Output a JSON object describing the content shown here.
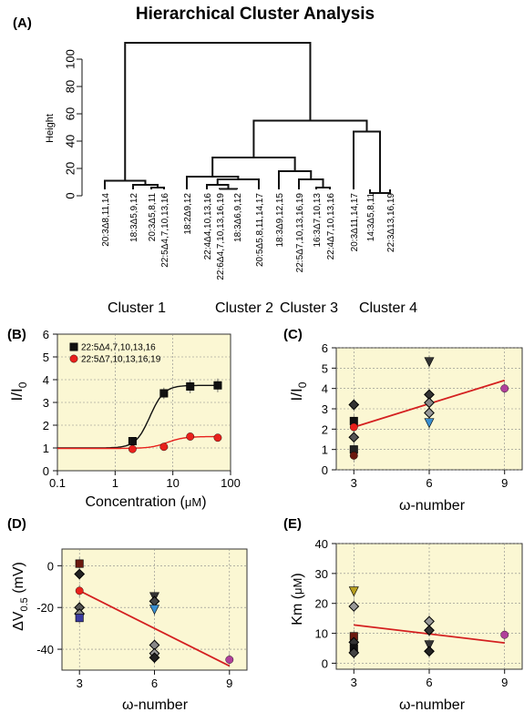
{
  "chart_data": [
    {
      "panel": "(A)",
      "type": "dendrogram",
      "title": "Hierarchical Cluster Analysis",
      "ylabel": "Height",
      "ylim": [
        0,
        100
      ],
      "yticks": [
        0,
        20,
        40,
        60,
        80,
        100
      ],
      "leaves": [
        "20:3Δ8,11,14",
        "18:3Δ5,9,12",
        "20:3Δ5,8,11",
        "22:5Δ4,7,10,13,16",
        "18:2Δ9,12",
        "22:4Δ4,10,13,16",
        "22:6Δ4,7,10,13,16,19",
        "18:3Δ6,9,12",
        "20:5Δ5,8,11,14,17",
        "18:3Δ9,12,15",
        "22:5Δ7,10,13,16,19",
        "16:3Δ7,10,13",
        "22:4Δ7,10,13,16",
        "20:3Δ11,14,17",
        "14:3Δ5,8,11",
        "22:3Δ13,16,19"
      ],
      "merges": [
        {
          "left": 2,
          "right": 3,
          "height": 6
        },
        {
          "left": 1,
          "right": "m0",
          "height": 8
        },
        {
          "left": 0,
          "right": "m1",
          "height": 11
        },
        {
          "left": 6,
          "right": 7,
          "height": 5
        },
        {
          "left": 5,
          "right": "m3",
          "height": 8
        },
        {
          "left": "m4",
          "right": 8,
          "height": 12
        },
        {
          "left": 4,
          "right": "m5",
          "height": 14
        },
        {
          "left": 11,
          "right": 12,
          "height": 6
        },
        {
          "left": 10,
          "right": "m7",
          "height": 12
        },
        {
          "left": 9,
          "right": "m8",
          "height": 18
        },
        {
          "left": 14,
          "right": 15,
          "height": 2
        },
        {
          "left": 13,
          "right": "m10",
          "height": 47
        },
        {
          "left": "m6",
          "right": "m9",
          "height": 28
        },
        {
          "left": "m12",
          "right": "m11",
          "height": 55
        },
        {
          "left": "m2",
          "right": "m13",
          "height": 112
        }
      ],
      "clusters": [
        "Cluster 1",
        "Cluster 2",
        "Cluster 3",
        "Cluster 4"
      ]
    },
    {
      "panel": "(B)",
      "type": "line",
      "xlabel_main": "Concentration (",
      "xlabel_unit": "μM",
      "xlabel_end": ")",
      "ylabel_main": "I/I",
      "ylabel_sub": "0",
      "xscale": "log",
      "xlim": [
        0.1,
        100
      ],
      "xticks": [
        "0.1",
        "1",
        "10",
        "100"
      ],
      "ylim": [
        0,
        6
      ],
      "yticks": [
        "0",
        "1",
        "2",
        "3",
        "4",
        "5",
        "6"
      ],
      "legend": "top-left",
      "series": [
        {
          "name": "22:5Δ4,7,10,13,16",
          "color": "#111111",
          "marker": "square",
          "x": [
            2,
            7,
            20,
            60
          ],
          "y": [
            1.3,
            3.4,
            3.7,
            3.75
          ],
          "err": [
            0.1,
            0.25,
            0.3,
            0.3
          ],
          "fit": {
            "bottom": 1.0,
            "top": 3.75,
            "ec50": 4.0,
            "hill": 3.5
          }
        },
        {
          "name": "22:5Δ7,10,13,16,19",
          "color": "#e8211c",
          "marker": "circle",
          "x": [
            2,
            7,
            20,
            60
          ],
          "y": [
            0.95,
            1.05,
            1.5,
            1.45
          ],
          "err": [
            0.05,
            0.06,
            0.1,
            0.08
          ],
          "fit": {
            "bottom": 0.98,
            "top": 1.5,
            "ec50": 8.0,
            "hill": 3.0
          }
        }
      ]
    },
    {
      "panel": "(C)",
      "type": "scatter",
      "xlabel_main": "ω-number",
      "ylabel_main": "I/I",
      "ylabel_sub": "0",
      "xlim": [
        2.3,
        9.7
      ],
      "xticks": [
        "3",
        "6",
        "9"
      ],
      "ylim": [
        0,
        6
      ],
      "yticks": [
        "0",
        "1",
        "2",
        "3",
        "4",
        "5",
        "6"
      ],
      "trend": {
        "x1": 3,
        "y1": 2.1,
        "x2": 9,
        "y2": 4.4
      },
      "points": [
        {
          "x": 3,
          "y": 3.2,
          "m": "diamond",
          "c": "#333333"
        },
        {
          "x": 3,
          "y": 2.4,
          "m": "square",
          "c": "#111111"
        },
        {
          "x": 3,
          "y": 2.1,
          "m": "circle",
          "c": "#e8211c"
        },
        {
          "x": 3,
          "y": 1.6,
          "m": "diamond",
          "c": "#555555"
        },
        {
          "x": 3,
          "y": 1.0,
          "m": "square",
          "c": "#222222"
        },
        {
          "x": 3,
          "y": 0.7,
          "m": "circle",
          "c": "#6b1a10"
        },
        {
          "x": 6,
          "y": 5.3,
          "m": "triangle-down",
          "c": "#333333"
        },
        {
          "x": 6,
          "y": 3.7,
          "m": "diamond",
          "c": "#333333"
        },
        {
          "x": 6,
          "y": 3.3,
          "m": "diamond",
          "c": "#888888"
        },
        {
          "x": 6,
          "y": 2.8,
          "m": "diamond",
          "c": "#999999"
        },
        {
          "x": 6,
          "y": 2.3,
          "m": "triangle-down",
          "c": "#3a8ed0"
        },
        {
          "x": 9,
          "y": 4.0,
          "m": "circle",
          "c": "#b0409a"
        }
      ]
    },
    {
      "panel": "(D)",
      "type": "scatter",
      "xlabel_main": "ω-number",
      "ylabel_main": "ΔV",
      "ylabel_sub": "0.5",
      "ylabel_end": " (mV)",
      "xlim": [
        2.3,
        9.7
      ],
      "xticks": [
        "3",
        "6",
        "9"
      ],
      "ylim": [
        -50,
        8
      ],
      "yticks": [
        "-40",
        "-20",
        "0"
      ],
      "yticks_v": [
        -40,
        -20,
        0
      ],
      "trend": {
        "x1": 3,
        "y1": -12,
        "x2": 9,
        "y2": -48
      },
      "points": [
        {
          "x": 3,
          "y": 1,
          "m": "square",
          "c": "#6b1a10"
        },
        {
          "x": 3,
          "y": -4,
          "m": "diamond",
          "c": "#222222"
        },
        {
          "x": 3,
          "y": -12,
          "m": "circle",
          "c": "#e8211c"
        },
        {
          "x": 3,
          "y": -20,
          "m": "diamond",
          "c": "#555555"
        },
        {
          "x": 3,
          "y": -23,
          "m": "diamond",
          "c": "#888888"
        },
        {
          "x": 3,
          "y": -25,
          "m": "square",
          "c": "#3a3aa0"
        },
        {
          "x": 6,
          "y": -15,
          "m": "triangle-down",
          "c": "#333333"
        },
        {
          "x": 6,
          "y": -17,
          "m": "diamond",
          "c": "#444444"
        },
        {
          "x": 6,
          "y": -21,
          "m": "triangle-down",
          "c": "#3a8ed0"
        },
        {
          "x": 6,
          "y": -38,
          "m": "diamond",
          "c": "#888888"
        },
        {
          "x": 6,
          "y": -42,
          "m": "diamond",
          "c": "#999999"
        },
        {
          "x": 6,
          "y": -44,
          "m": "diamond",
          "c": "#222222"
        },
        {
          "x": 9,
          "y": -45,
          "m": "circle",
          "c": "#b0409a"
        }
      ]
    },
    {
      "panel": "(E)",
      "type": "scatter",
      "xlabel_main": "ω-number",
      "ylabel_main": "Km (",
      "ylabel_unit": "μM",
      "ylabel_end": ")",
      "xlim": [
        2.3,
        9.7
      ],
      "xticks": [
        "3",
        "6",
        "9"
      ],
      "ylim": [
        -2,
        40
      ],
      "yticks": [
        "0",
        "10",
        "20",
        "30",
        "40"
      ],
      "yticks_v": [
        0,
        10,
        20,
        30,
        40
      ],
      "trend": {
        "x1": 3,
        "y1": 12.8,
        "x2": 9,
        "y2": 6.8
      },
      "points": [
        {
          "x": 3,
          "y": 24,
          "m": "triangle-down",
          "c": "#b8a020"
        },
        {
          "x": 3,
          "y": 19,
          "m": "diamond",
          "c": "#999999"
        },
        {
          "x": 3,
          "y": 9,
          "m": "square",
          "c": "#6b1a10"
        },
        {
          "x": 3,
          "y": 7,
          "m": "diamond",
          "c": "#333333"
        },
        {
          "x": 3,
          "y": 5,
          "m": "square",
          "c": "#111111"
        },
        {
          "x": 3,
          "y": 3.5,
          "m": "diamond",
          "c": "#444444"
        },
        {
          "x": 6,
          "y": 14,
          "m": "diamond",
          "c": "#999999"
        },
        {
          "x": 6,
          "y": 11,
          "m": "diamond",
          "c": "#333333"
        },
        {
          "x": 6,
          "y": 6,
          "m": "triangle-down",
          "c": "#333333"
        },
        {
          "x": 6,
          "y": 4,
          "m": "diamond",
          "c": "#222222"
        },
        {
          "x": 9,
          "y": 9.5,
          "m": "circle",
          "c": "#b0409a"
        }
      ]
    }
  ]
}
